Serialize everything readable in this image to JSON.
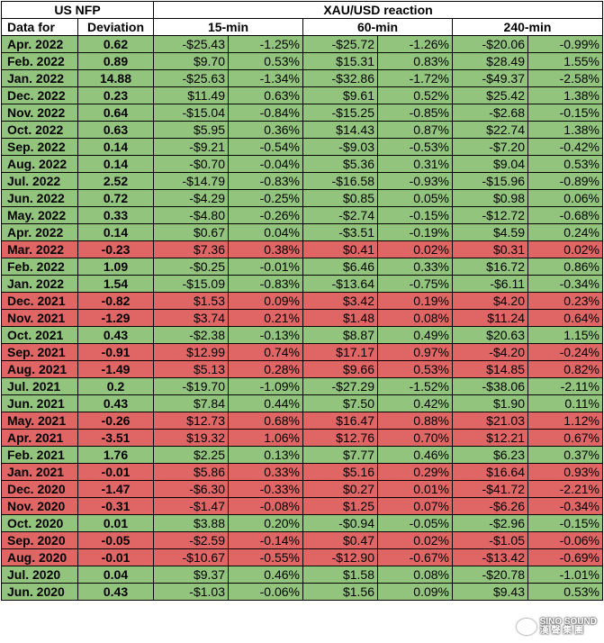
{
  "headers": {
    "us_nfp": "US NFP",
    "reaction": "XAU/USD reaction",
    "data_for": "Data for",
    "deviation": "Deviation",
    "min15": "15-min",
    "min60": "60-min",
    "min240": "240-min"
  },
  "colors": {
    "positive": "#93c47d",
    "negative": "#e06666"
  },
  "rows": [
    {
      "date": "Apr. 2022",
      "dev": "0.62",
      "c": "green",
      "m15d": "-$25.43",
      "m15p": "-1.25%",
      "m60d": "-$25.72",
      "m60p": "-1.26%",
      "m240d": "-$20.06",
      "m240p": "-0.99%"
    },
    {
      "date": "Feb. 2022",
      "dev": "0.89",
      "c": "green",
      "m15d": "$9.70",
      "m15p": "0.53%",
      "m60d": "$15.31",
      "m60p": "0.83%",
      "m240d": "$28.49",
      "m240p": "1.55%"
    },
    {
      "date": "Jan. 2022",
      "dev": "14.88",
      "c": "green",
      "m15d": "-$25.63",
      "m15p": "-1.34%",
      "m60d": "-$32.86",
      "m60p": "-1.72%",
      "m240d": "-$49.37",
      "m240p": "-2.58%"
    },
    {
      "date": "Dec. 2022",
      "dev": "0.23",
      "c": "green",
      "m15d": "$11.49",
      "m15p": "0.63%",
      "m60d": "$9.61",
      "m60p": "0.52%",
      "m240d": "$25.42",
      "m240p": "1.38%"
    },
    {
      "date": "Nov. 2022",
      "dev": "0.64",
      "c": "green",
      "m15d": "-$15.04",
      "m15p": "-0.84%",
      "m60d": "-$15.25",
      "m60p": "-0.85%",
      "m240d": "-$2.68",
      "m240p": "-0.15%"
    },
    {
      "date": "Oct. 2022",
      "dev": "0.63",
      "c": "green",
      "m15d": "$5.95",
      "m15p": "0.36%",
      "m60d": "$14.43",
      "m60p": "0.87%",
      "m240d": "$22.74",
      "m240p": "1.38%"
    },
    {
      "date": "Sep. 2022",
      "dev": "0.14",
      "c": "green",
      "m15d": "-$9.21",
      "m15p": "-0.54%",
      "m60d": "-$9.03",
      "m60p": "-0.53%",
      "m240d": "-$7.20",
      "m240p": "-0.42%"
    },
    {
      "date": "Aug. 2022",
      "dev": "0.14",
      "c": "green",
      "m15d": "-$0.70",
      "m15p": "-0.04%",
      "m60d": "$5.36",
      "m60p": "0.31%",
      "m240d": "$9.04",
      "m240p": "0.53%"
    },
    {
      "date": "Jul. 2022",
      "dev": "2.52",
      "c": "green",
      "m15d": "-$14.79",
      "m15p": "-0.83%",
      "m60d": "-$16.58",
      "m60p": "-0.93%",
      "m240d": "-$15.96",
      "m240p": "-0.89%"
    },
    {
      "date": "Jun. 2022",
      "dev": "0.72",
      "c": "green",
      "m15d": "-$4.29",
      "m15p": "-0.25%",
      "m60d": "$0.85",
      "m60p": "0.05%",
      "m240d": "$0.98",
      "m240p": "0.06%"
    },
    {
      "date": "May. 2022",
      "dev": "0.33",
      "c": "green",
      "m15d": "-$4.80",
      "m15p": "-0.26%",
      "m60d": "-$2.74",
      "m60p": "-0.15%",
      "m240d": "-$12.72",
      "m240p": "-0.68%"
    },
    {
      "date": "Apr. 2022",
      "dev": "0.14",
      "c": "green",
      "m15d": "$0.67",
      "m15p": "0.04%",
      "m60d": "-$3.51",
      "m60p": "-0.19%",
      "m240d": "$4.59",
      "m240p": "0.24%"
    },
    {
      "date": "Mar. 2022",
      "dev": "-0.23",
      "c": "red",
      "m15d": "$7.36",
      "m15p": "0.38%",
      "m60d": "$0.41",
      "m60p": "0.02%",
      "m240d": "$0.31",
      "m240p": "0.02%"
    },
    {
      "date": "Feb. 2022",
      "dev": "1.09",
      "c": "green",
      "m15d": "-$0.25",
      "m15p": "-0.01%",
      "m60d": "$6.46",
      "m60p": "0.33%",
      "m240d": "$16.72",
      "m240p": "0.86%"
    },
    {
      "date": "Jan. 2022",
      "dev": "1.54",
      "c": "green",
      "m15d": "-$15.09",
      "m15p": "-0.83%",
      "m60d": "-$13.64",
      "m60p": "-0.75%",
      "m240d": "-$6.11",
      "m240p": "-0.34%"
    },
    {
      "date": "Dec. 2021",
      "dev": "-0.82",
      "c": "red",
      "m15d": "$1.53",
      "m15p": "0.09%",
      "m60d": "$3.42",
      "m60p": "0.19%",
      "m240d": "$4.20",
      "m240p": "0.23%"
    },
    {
      "date": "Nov. 2021",
      "dev": "-1.29",
      "c": "red",
      "m15d": "$3.74",
      "m15p": "0.21%",
      "m60d": "$1.48",
      "m60p": "0.08%",
      "m240d": "$11.24",
      "m240p": "0.64%"
    },
    {
      "date": "Oct. 2021",
      "dev": "0.43",
      "c": "green",
      "m15d": "-$2.38",
      "m15p": "-0.13%",
      "m60d": "$8.87",
      "m60p": "0.49%",
      "m240d": "$20.63",
      "m240p": "1.15%"
    },
    {
      "date": "Sep. 2021",
      "dev": "-0.91",
      "c": "red",
      "m15d": "$12.99",
      "m15p": "0.74%",
      "m60d": "$17.17",
      "m60p": "0.97%",
      "m240d": "-$4.20",
      "m240p": "-0.24%"
    },
    {
      "date": "Aug. 2021",
      "dev": "-1.49",
      "c": "red",
      "m15d": "$5.13",
      "m15p": "0.28%",
      "m60d": "$9.66",
      "m60p": "0.53%",
      "m240d": "$14.85",
      "m240p": "0.82%"
    },
    {
      "date": "Jul. 2021",
      "dev": "0.2",
      "c": "green",
      "m15d": "-$19.70",
      "m15p": "-1.09%",
      "m60d": "-$27.29",
      "m60p": "-1.52%",
      "m240d": "-$38.06",
      "m240p": "-2.11%"
    },
    {
      "date": "Jun. 2021",
      "dev": "0.43",
      "c": "green",
      "m15d": "$7.84",
      "m15p": "0.44%",
      "m60d": "$7.50",
      "m60p": "0.42%",
      "m240d": "$1.90",
      "m240p": "0.11%"
    },
    {
      "date": "May. 2021",
      "dev": "-0.26",
      "c": "red",
      "m15d": "$12.73",
      "m15p": "0.68%",
      "m60d": "$16.47",
      "m60p": "0.88%",
      "m240d": "$21.03",
      "m240p": "1.12%"
    },
    {
      "date": "Apr. 2021",
      "dev": "-3.51",
      "c": "red",
      "m15d": "$19.32",
      "m15p": "1.06%",
      "m60d": "$12.76",
      "m60p": "0.70%",
      "m240d": "$12.21",
      "m240p": "0.67%"
    },
    {
      "date": "Feb. 2021",
      "dev": "1.76",
      "c": "green",
      "m15d": "$2.25",
      "m15p": "0.13%",
      "m60d": "$7.77",
      "m60p": "0.46%",
      "m240d": "$6.23",
      "m240p": "0.37%"
    },
    {
      "date": "Jan. 2021",
      "dev": "-0.01",
      "c": "red",
      "m15d": "$5.86",
      "m15p": "0.33%",
      "m60d": "$5.16",
      "m60p": "0.29%",
      "m240d": "$16.64",
      "m240p": "0.93%"
    },
    {
      "date": "Dec. 2020",
      "dev": "-1.47",
      "c": "red",
      "m15d": "-$6.30",
      "m15p": "-0.33%",
      "m60d": "$0.27",
      "m60p": "0.01%",
      "m240d": "-$41.72",
      "m240p": "-2.21%"
    },
    {
      "date": "Nov. 2020",
      "dev": "-0.31",
      "c": "red",
      "m15d": "-$1.47",
      "m15p": "-0.08%",
      "m60d": "$1.25",
      "m60p": "0.07%",
      "m240d": "-$6.26",
      "m240p": "-0.34%"
    },
    {
      "date": "Oct. 2020",
      "dev": "0.01",
      "c": "green",
      "m15d": "$3.88",
      "m15p": "0.20%",
      "m60d": "-$0.94",
      "m60p": "-0.05%",
      "m240d": "-$2.96",
      "m240p": "-0.15%"
    },
    {
      "date": "Sep. 2020",
      "dev": "-0.05",
      "c": "red",
      "m15d": "-$2.59",
      "m15p": "-0.14%",
      "m60d": "$0.47",
      "m60p": "0.02%",
      "m240d": "-$1.05",
      "m240p": "-0.06%"
    },
    {
      "date": "Aug. 2020",
      "dev": "-0.01",
      "c": "red",
      "m15d": "-$10.67",
      "m15p": "-0.55%",
      "m60d": "-$12.90",
      "m60p": "-0.67%",
      "m240d": "-$13.42",
      "m240p": "-0.69%"
    },
    {
      "date": "Jul. 2020",
      "dev": "0.04",
      "c": "green",
      "m15d": "$9.37",
      "m15p": "0.46%",
      "m60d": "$1.58",
      "m60p": "0.08%",
      "m240d": "-$20.78",
      "m240p": "-1.01%"
    },
    {
      "date": "Jun. 2020",
      "dev": "0.43",
      "c": "green",
      "m15d": "-$1.03",
      "m15p": "-0.06%",
      "m60d": "$1.56",
      "m60p": "0.09%",
      "m240d": "$9.43",
      "m240p": "0.53%"
    }
  ],
  "watermark": {
    "line1": "SINO SOUND",
    "line2": "漢 聲 集 團"
  }
}
